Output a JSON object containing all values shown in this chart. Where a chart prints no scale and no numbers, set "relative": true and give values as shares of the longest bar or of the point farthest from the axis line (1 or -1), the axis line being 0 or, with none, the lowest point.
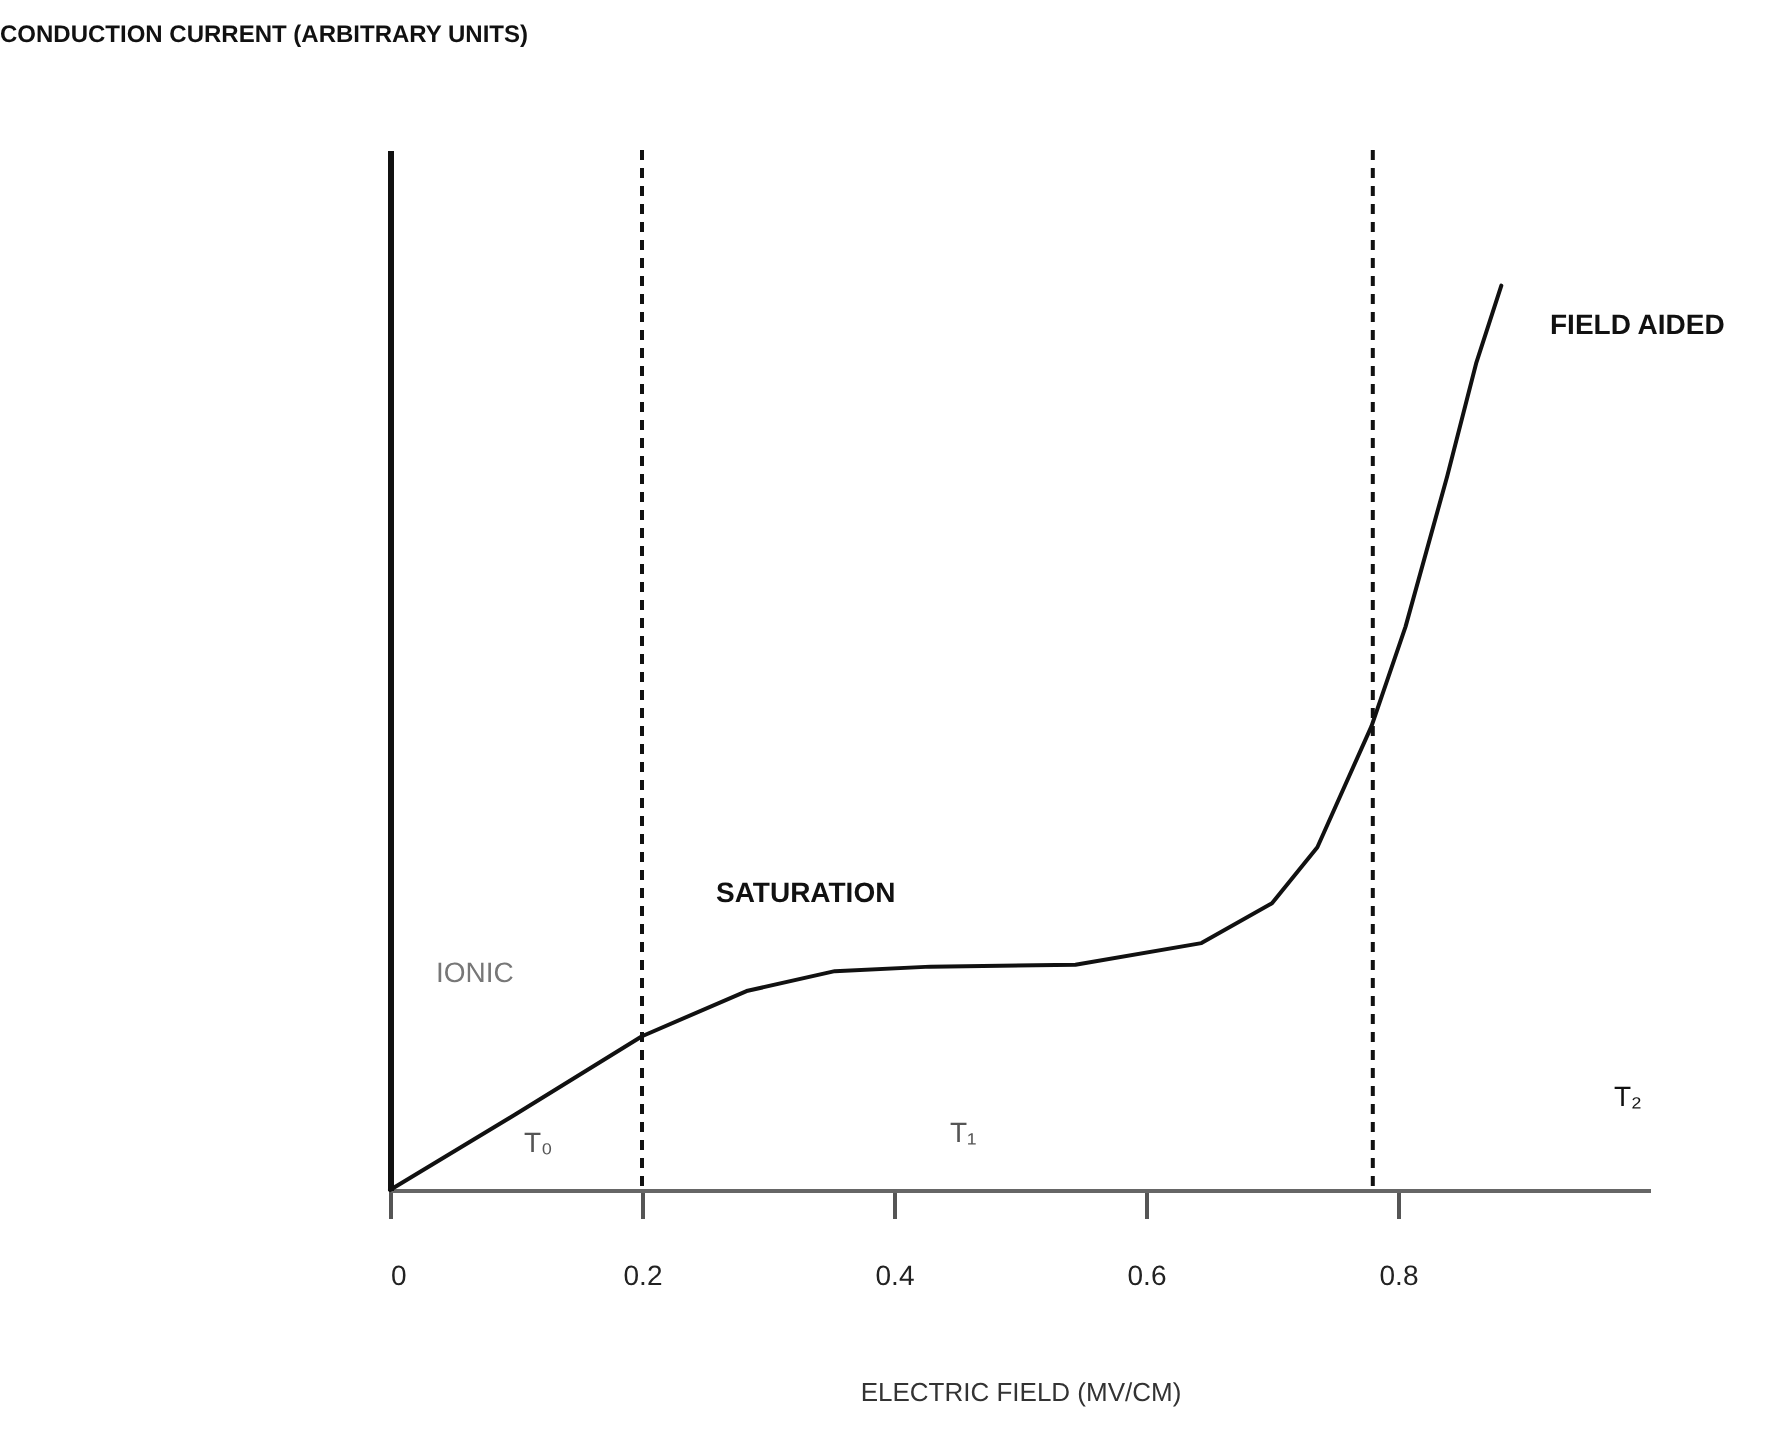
{
  "chart_data": {
    "type": "line",
    "relative": true,
    "xlabel": "ELECTRIC FIELD (MV/CM)",
    "x": [
      0,
      0.1,
      0.2,
      0.283,
      0.353,
      0.429,
      0.544,
      0.644,
      0.7,
      0.736,
      0.779,
      0.806,
      0.839,
      0.862,
      0.882
    ],
    "series": [
      {
        "color": "#111111",
        "values": [
          0,
          0.084,
          0.17,
          0.22,
          0.242,
          0.247,
          0.249,
          0.273,
          0.317,
          0.379,
          0.513,
          0.623,
          0.789,
          0.914,
          1
        ]
      }
    ],
    "xlim": [
      0,
      1.0
    ],
    "xticks": [
      0,
      0.2,
      0.4,
      0.6,
      0.8
    ],
    "ref_lines": [
      {
        "axis": "x",
        "value": 0.2,
        "color": "#111111",
        "line_style": "dashed"
      },
      {
        "axis": "x",
        "value": 0.78,
        "color": "#111111",
        "line_style": "dashed"
      }
    ],
    "annotations": [
      "CONDUCTION CURRENT (ARBITRARY UNITS)",
      "IONIC",
      "SATURATION",
      "FIELD AIDED",
      "T₀",
      "T₁",
      "T₂"
    ],
    "grid": false,
    "line_style": "solid"
  }
}
